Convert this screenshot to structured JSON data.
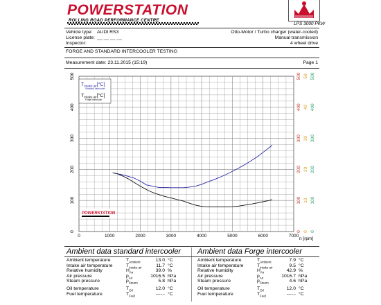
{
  "header": {
    "brand": "POWERSTATION",
    "brand_sub": "ROLLING ROAD PERFORMANCE CENTRE",
    "dyno_model": "LPS 3000 PKW",
    "vehicle_type_label": "Vehicle type:",
    "vehicle_type": "AUDI RS3",
    "license_plate_label": "License plate:",
    "license_plate": "__ __ __ __",
    "inspector_label": "Inspector:",
    "engine": "Otto-Motor / Turbo charger (water-cooled)",
    "transmission": "Manual transmission",
    "drive": "4 wheel drive",
    "test_title": "FORGE AND STANDARD INTERCOOLER TESTING",
    "measurement_date": "Measurement date: 23.11.2015 (15:19)",
    "page": "Page 1"
  },
  "colors": {
    "brand": "#c8102e",
    "series_standard": "#2a2aa8",
    "series_forge": "#111111",
    "right_axis_1": "#c0392b",
    "right_axis_2": "#d4a017",
    "right_axis_3": "#2e9e6a"
  },
  "chart_data": {
    "type": "line",
    "xlabel": "n [rpm]",
    "xlim": [
      0,
      7000
    ],
    "x_ticks": [
      "0",
      "1000",
      "2000",
      "3000",
      "4000",
      "5000",
      "6000",
      "7000"
    ],
    "ylim": [
      0,
      500
    ],
    "y_ticks": [
      "0",
      "100",
      "200",
      "300",
      "400",
      "500"
    ],
    "right_axis_1": [
      "0",
      "100",
      "200",
      "300",
      "400",
      "500"
    ],
    "right_axis_2": [
      "0",
      "10",
      "20",
      "30",
      "40",
      "50"
    ],
    "right_axis_3": [
      "0",
      "100",
      "200",
      "300",
      "400",
      "500"
    ],
    "legend": [
      {
        "label": "T",
        "sub": "Intake air",
        "unit": "[°C]",
        "note": "Standard Intercooler"
      },
      {
        "label": "T",
        "sub": "Intake air",
        "unit": "[°C]",
        "note": "Forge Intercooler"
      }
    ],
    "watermark": "POWERSTATION",
    "series": [
      {
        "x": [
          1100,
          1250,
          1400,
          1600,
          1800,
          2000,
          2200,
          2400,
          2600,
          2800,
          3000,
          3200,
          3400,
          3600,
          3800,
          4000,
          4200,
          4400,
          4600,
          4800,
          5000,
          5200,
          5400,
          5600,
          5800,
          6000,
          6200,
          6300
        ],
        "values": [
          189,
          186,
          183,
          178,
          172,
          162,
          150,
          146,
          142,
          142,
          141,
          141,
          141,
          143,
          146,
          152,
          160,
          167,
          175,
          184,
          194,
          204,
          215,
          227,
          240,
          255,
          270,
          278
        ]
      },
      {
        "x": [
          1100,
          1250,
          1400,
          1600,
          1800,
          2000,
          2200,
          2400,
          2600,
          2800,
          3000,
          3200,
          3400,
          3600,
          3800,
          4000,
          4200,
          4400,
          4600,
          4800,
          5000,
          5200,
          5400,
          5600,
          5800,
          6000,
          6200,
          6300
        ],
        "values": [
          189,
          186,
          180,
          170,
          158,
          146,
          135,
          126,
          119,
          113,
          108,
          103,
          98,
          91,
          85,
          81,
          79,
          79,
          79,
          79,
          80,
          82,
          85,
          88,
          92,
          96,
          100,
          103
        ]
      }
    ]
  },
  "ambient": {
    "standard": {
      "title": "Ambient data standard intercooler",
      "rows": [
        {
          "label": "Ambient temperature",
          "sym": "T",
          "sub": "Ambient",
          "value": "13.0",
          "unit": "°C"
        },
        {
          "label": "Intake air temperature",
          "sym": "T",
          "sub": "Intake air",
          "value": "11.7",
          "unit": "°C"
        },
        {
          "label": "Relative humidity",
          "sym": "H",
          "sub": "Air",
          "value": "39.0",
          "unit": "%"
        },
        {
          "label": "Air pressure",
          "sym": "p",
          "sub": "Air",
          "value": "1016.5",
          "unit": "hPa"
        },
        {
          "label": "Steam pressure",
          "sym": "p",
          "sub": "Steam",
          "value": "5.8",
          "unit": "hPa"
        },
        {
          "label": "Oil temperature",
          "sym": "T",
          "sub": "Oil",
          "value": "12.0",
          "unit": "°C"
        },
        {
          "label": "Fuel temperature",
          "sym": "T",
          "sub": "Fuel",
          "value": "----.-",
          "unit": "°C"
        }
      ]
    },
    "forge": {
      "title": "Ambient data Forge intercooler",
      "rows": [
        {
          "label": "Ambient temperature",
          "sym": "T",
          "sub": "Ambient",
          "value": "7.9",
          "unit": "°C"
        },
        {
          "label": "Intake air temperature",
          "sym": "T",
          "sub": "Intake air",
          "value": "9.5",
          "unit": "°C"
        },
        {
          "label": "Relative humidity",
          "sym": "H",
          "sub": "Air",
          "value": "42.9",
          "unit": "%"
        },
        {
          "label": "Air pressure",
          "sym": "p",
          "sub": "Air",
          "value": "1016.7",
          "unit": "hPa"
        },
        {
          "label": "Steam pressure",
          "sym": "p",
          "sub": "Steam",
          "value": "4.6",
          "unit": "hPa"
        },
        {
          "label": "Oil temperature",
          "sym": "T",
          "sub": "Oil",
          "value": "12.0",
          "unit": "°C"
        },
        {
          "label": "Fuel temperature",
          "sym": "T",
          "sub": "Fuel",
          "value": "----.-",
          "unit": "°C"
        }
      ]
    }
  }
}
